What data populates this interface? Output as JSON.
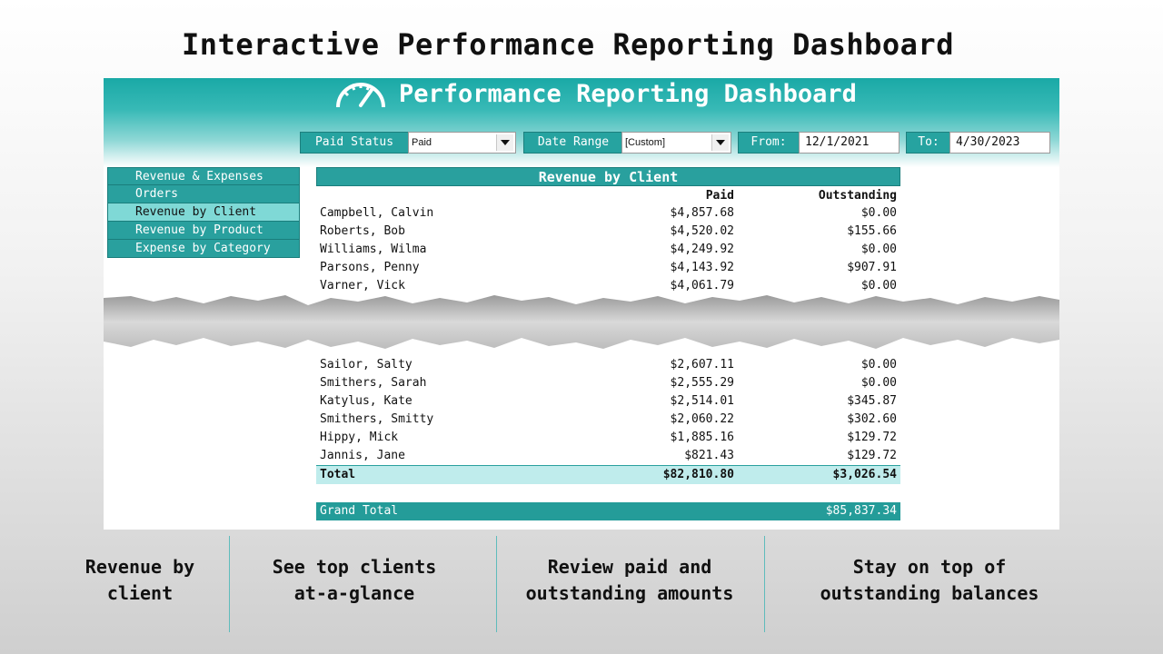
{
  "page_heading": "Interactive Performance Reporting Dashboard",
  "app": {
    "title": "Performance Reporting Dashboard",
    "icon": "gauge-icon"
  },
  "filters": {
    "paid_status": {
      "label": "Paid Status",
      "value": "Paid"
    },
    "date_range": {
      "label": "Date Range",
      "value": "[Custom]"
    },
    "from": {
      "label": "From:",
      "value": "12/1/2021"
    },
    "to": {
      "label": "To:",
      "value": "4/30/2023"
    }
  },
  "nav": {
    "items": [
      {
        "label": "Revenue & Expenses"
      },
      {
        "label": "Orders"
      },
      {
        "label": "Revenue by Client"
      },
      {
        "label": "Revenue by Product"
      },
      {
        "label": "Expense by Category"
      }
    ],
    "active": "Revenue by Client"
  },
  "report": {
    "title": "Revenue by Client",
    "columns": {
      "paid": "Paid",
      "outstanding": "Outstanding"
    },
    "top_rows": [
      {
        "name": "Campbell, Calvin",
        "paid": "$4,857.68",
        "outstanding": "$0.00"
      },
      {
        "name": "Roberts, Bob",
        "paid": "$4,520.02",
        "outstanding": "$155.66"
      },
      {
        "name": "Williams, Wilma",
        "paid": "$4,249.92",
        "outstanding": "$0.00"
      },
      {
        "name": "Parsons, Penny",
        "paid": "$4,143.92",
        "outstanding": "$907.91"
      },
      {
        "name": "Varner, Vick",
        "paid": "$4,061.79",
        "outstanding": "$0.00"
      }
    ],
    "bottom_rows": [
      {
        "name": "Sailor, Salty",
        "paid": "$2,607.11",
        "outstanding": "$0.00"
      },
      {
        "name": "Smithers, Sarah",
        "paid": "$2,555.29",
        "outstanding": "$0.00"
      },
      {
        "name": "Katylus, Kate",
        "paid": "$2,514.01",
        "outstanding": "$345.87"
      },
      {
        "name": "Smithers, Smitty",
        "paid": "$2,060.22",
        "outstanding": "$302.60"
      },
      {
        "name": "Hippy, Mick",
        "paid": "$1,885.16",
        "outstanding": "$129.72"
      },
      {
        "name": "Jannis, Jane",
        "paid": "$821.43",
        "outstanding": "$129.72"
      }
    ],
    "total": {
      "label": "Total",
      "paid": "$82,810.80",
      "outstanding": "$3,026.54"
    },
    "grand_total": {
      "label": "Grand Total",
      "value": "$85,837.34"
    }
  },
  "features": [
    {
      "line1": "Revenue by",
      "line2": "client"
    },
    {
      "line1": "See top clients",
      "line2": "at-a-glance"
    },
    {
      "line1": "Review paid and",
      "line2": "outstanding amounts"
    },
    {
      "line1": "Stay on top of",
      "line2": "outstanding balances"
    }
  ],
  "colors": {
    "teal": "#29a09e",
    "teal_light": "#7fd9d6",
    "total_row": "#bfecec"
  }
}
